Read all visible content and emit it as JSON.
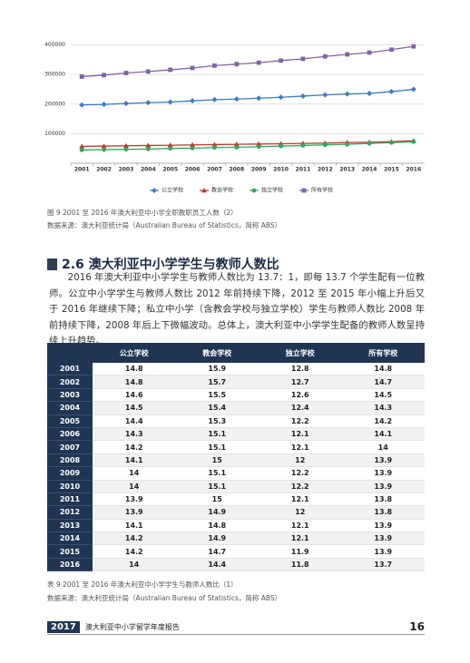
{
  "chart_data": {
    "type": "line",
    "categories": [
      "2001",
      "2002",
      "2003",
      "2004",
      "2005",
      "2006",
      "2007",
      "2008",
      "2009",
      "2010",
      "2011",
      "2012",
      "2013",
      "2014",
      "2015",
      "2016"
    ],
    "series": [
      {
        "name": "公立学校",
        "color": "#3b7cc0",
        "marker": "diamond",
        "values": [
          197000,
          199000,
          202000,
          205000,
          207000,
          211000,
          215000,
          217000,
          220000,
          223000,
          227000,
          231000,
          234000,
          236000,
          242000,
          250000
        ]
      },
      {
        "name": "教会学校",
        "color": "#c0392b",
        "marker": "triangle",
        "values": [
          57000,
          58000,
          59000,
          60000,
          61000,
          62000,
          63000,
          64000,
          65000,
          66000,
          67000,
          68000,
          70000,
          71000,
          73000,
          76000
        ]
      },
      {
        "name": "独立学校",
        "color": "#2eaa5c",
        "marker": "circle",
        "values": [
          45000,
          46000,
          47000,
          48000,
          50000,
          51000,
          53000,
          54000,
          56000,
          58000,
          60000,
          62000,
          64000,
          67000,
          70000,
          73000
        ]
      },
      {
        "name": "所有学校",
        "color": "#8064a2",
        "marker": "square",
        "values": [
          293000,
          298000,
          305000,
          310000,
          316000,
          322000,
          330000,
          335000,
          340000,
          347000,
          353000,
          361000,
          368000,
          374000,
          384000,
          395000
        ]
      }
    ],
    "ylim": [
      0,
      420000
    ],
    "yticks": [
      100000,
      200000,
      300000,
      400000
    ],
    "grid": true,
    "legend": "bottom"
  },
  "figure_caption": "图 9 2001 至 2016 年澳大利亚中小学全职教职员工人数（2）",
  "figure_source": "数据来源：澳大利亚统计局（Australian Bureau of Statistics，简称 ABS）",
  "section_title": "2.6 澳大利亚中小学学生与教师人数比",
  "paragraph": "2016 年澳大利亚中小学学生与教师人数比为 13.7：1，即每 13.7 个学生配有一位教师。公立中小学学生与教师人数比 2012 年前持续下降，2012 至 2015 年小幅上升后又于 2016 年继续下降；私立中小学（含教会学校与独立学校）学生与教师人数比 2008 年前持续下降，2008 年后上下微幅波动。总体上，澳大利亚中小学学生配备的教师人数呈持续上升趋势。",
  "table": {
    "columns": [
      "公立学校",
      "教会学校",
      "独立学校",
      "所有学校"
    ],
    "rows": [
      [
        "2001",
        "14.8",
        "15.9",
        "12.8",
        "14.8"
      ],
      [
        "2002",
        "14.8",
        "15.7",
        "12.7",
        "14.7"
      ],
      [
        "2003",
        "14.6",
        "15.5",
        "12.6",
        "14.5"
      ],
      [
        "2004",
        "14.5",
        "15.4",
        "12.4",
        "14.3"
      ],
      [
        "2005",
        "14.4",
        "15.3",
        "12.2",
        "14.2"
      ],
      [
        "2006",
        "14.3",
        "15.1",
        "12.1",
        "14.1"
      ],
      [
        "2007",
        "14.2",
        "15.1",
        "12.1",
        "14"
      ],
      [
        "2008",
        "14.1",
        "15",
        "12",
        "13.9"
      ],
      [
        "2009",
        "14",
        "15.1",
        "12.2",
        "13.9"
      ],
      [
        "2010",
        "14",
        "15.1",
        "12.2",
        "13.9"
      ],
      [
        "2011",
        "13.9",
        "15",
        "12.1",
        "13.8"
      ],
      [
        "2012",
        "13.9",
        "14.9",
        "12",
        "13.8"
      ],
      [
        "2013",
        "14.1",
        "14.8",
        "12.1",
        "13.9"
      ],
      [
        "2014",
        "14.2",
        "14.9",
        "12.1",
        "13.9"
      ],
      [
        "2015",
        "14.2",
        "14.7",
        "11.9",
        "13.9"
      ],
      [
        "2016",
        "14",
        "14.4",
        "11.8",
        "13.7"
      ]
    ]
  },
  "table_caption": "表 9 2001 至 2016 年澳大利亚中小学学生与教师人数比（1）",
  "table_source": "数据来源：澳大利亚统计局（Australian Bureau of Statistics，简称 ABS）",
  "footer": {
    "year": "2017",
    "title": "澳大利亚中小学留学年度报告",
    "page": "16"
  }
}
